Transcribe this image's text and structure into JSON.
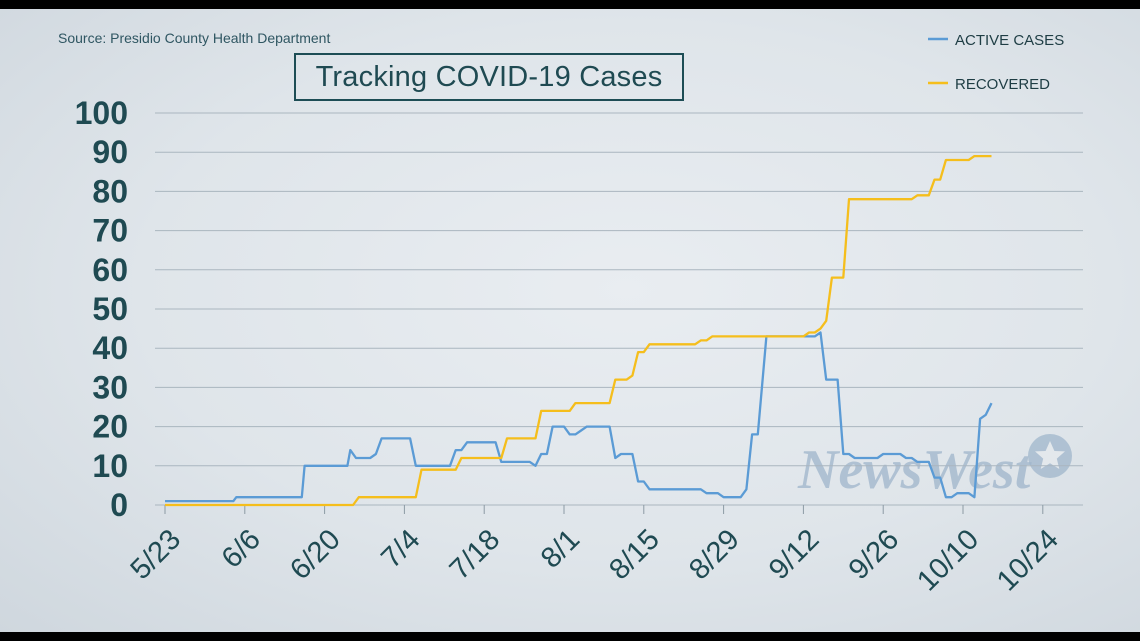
{
  "source_note": "Source: Presidio County Health Department",
  "watermark": "NewsWest",
  "colors": {
    "active": "#5b9bd5",
    "recovered": "#f5be1c",
    "text": "#1f4a52",
    "grid": "#aab6bf"
  },
  "chart_data": {
    "type": "line",
    "title": "Tracking COVID-19 Cases",
    "xlabel": "",
    "ylabel": "",
    "ylim": [
      0,
      100
    ],
    "yticks": [
      0,
      10,
      20,
      30,
      40,
      50,
      60,
      70,
      80,
      90,
      100
    ],
    "grid": true,
    "legend": "top-right",
    "x_start": "5/23",
    "xticks": [
      {
        "label": "5/23",
        "day": 0
      },
      {
        "label": "6/6",
        "day": 14
      },
      {
        "label": "6/20",
        "day": 28
      },
      {
        "label": "7/4",
        "day": 42
      },
      {
        "label": "7/18",
        "day": 56
      },
      {
        "label": "8/1",
        "day": 70
      },
      {
        "label": "8/15",
        "day": 84
      },
      {
        "label": "8/29",
        "day": 98
      },
      {
        "label": "9/12",
        "day": 112
      },
      {
        "label": "9/26",
        "day": 126
      },
      {
        "label": "10/10",
        "day": 140
      },
      {
        "label": "10/24",
        "day": 154
      }
    ],
    "series": [
      {
        "name": "ACTIVE CASES",
        "color": "#5b9bd5",
        "points": [
          [
            0,
            1
          ],
          [
            12,
            1
          ],
          [
            12.5,
            2
          ],
          [
            24,
            2
          ],
          [
            24.5,
            10
          ],
          [
            32,
            10
          ],
          [
            32.5,
            14
          ],
          [
            33.5,
            12
          ],
          [
            36,
            12
          ],
          [
            37,
            13
          ],
          [
            38,
            17
          ],
          [
            43,
            17
          ],
          [
            44,
            10
          ],
          [
            50,
            10
          ],
          [
            51,
            14
          ],
          [
            52,
            14
          ],
          [
            53,
            16
          ],
          [
            58,
            16
          ],
          [
            59,
            11
          ],
          [
            64,
            11
          ],
          [
            65,
            10
          ],
          [
            66,
            13
          ],
          [
            67,
            13
          ],
          [
            68,
            20
          ],
          [
            70,
            20
          ],
          [
            71,
            18
          ],
          [
            72,
            18
          ],
          [
            73,
            19
          ],
          [
            74,
            20
          ],
          [
            78,
            20
          ],
          [
            79,
            12
          ],
          [
            80,
            13
          ],
          [
            82,
            13
          ],
          [
            83,
            6
          ],
          [
            84,
            6
          ],
          [
            85,
            4
          ],
          [
            94,
            4
          ],
          [
            95,
            3
          ],
          [
            97,
            3
          ],
          [
            98,
            2
          ],
          [
            101,
            2
          ],
          [
            102,
            4
          ],
          [
            103,
            18
          ],
          [
            104,
            18
          ],
          [
            105.5,
            43
          ],
          [
            113,
            43
          ],
          [
            114,
            43
          ],
          [
            115,
            44
          ],
          [
            116,
            32
          ],
          [
            118,
            32
          ],
          [
            119,
            13
          ],
          [
            120,
            13
          ],
          [
            121,
            12
          ],
          [
            125,
            12
          ],
          [
            126,
            13
          ],
          [
            129,
            13
          ],
          [
            130,
            12
          ],
          [
            131,
            12
          ],
          [
            132,
            11
          ],
          [
            134,
            11
          ],
          [
            135,
            7
          ],
          [
            136,
            7
          ],
          [
            137,
            2
          ],
          [
            138,
            2
          ],
          [
            139,
            3
          ],
          [
            141,
            3
          ],
          [
            142,
            2
          ],
          [
            143,
            22
          ],
          [
            144,
            23
          ],
          [
            145,
            26
          ]
        ]
      },
      {
        "name": "RECOVERED",
        "color": "#f5be1c",
        "points": [
          [
            0,
            0
          ],
          [
            33,
            0
          ],
          [
            34,
            2
          ],
          [
            44,
            2
          ],
          [
            45,
            9
          ],
          [
            51,
            9
          ],
          [
            52,
            12
          ],
          [
            59,
            12
          ],
          [
            60,
            17
          ],
          [
            65,
            17
          ],
          [
            66,
            24
          ],
          [
            71,
            24
          ],
          [
            72,
            26
          ],
          [
            78,
            26
          ],
          [
            79,
            32
          ],
          [
            81,
            32
          ],
          [
            82,
            33
          ],
          [
            83,
            39
          ],
          [
            84,
            39
          ],
          [
            85,
            41
          ],
          [
            93,
            41
          ],
          [
            94,
            42
          ],
          [
            95,
            42
          ],
          [
            96,
            43
          ],
          [
            112,
            43
          ],
          [
            113,
            44
          ],
          [
            114,
            44
          ],
          [
            115,
            45
          ],
          [
            116,
            47
          ],
          [
            117,
            58
          ],
          [
            119,
            58
          ],
          [
            120,
            78
          ],
          [
            131,
            78
          ],
          [
            132,
            79
          ],
          [
            134,
            79
          ],
          [
            135,
            83
          ],
          [
            136,
            83
          ],
          [
            137,
            88
          ],
          [
            141,
            88
          ],
          [
            142,
            89
          ],
          [
            145,
            89
          ]
        ]
      }
    ]
  }
}
